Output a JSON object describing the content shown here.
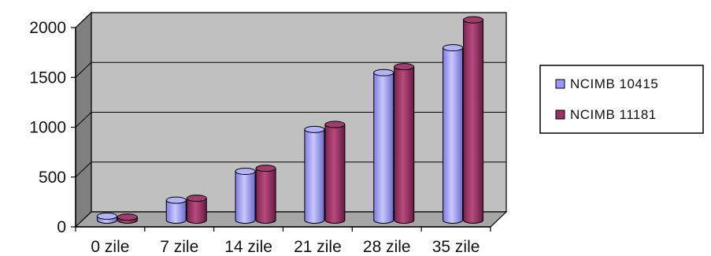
{
  "chart_data": {
    "type": "bar",
    "title": "",
    "xlabel": "",
    "ylabel": "",
    "categories": [
      "0 zile",
      "7 zile",
      "14 zile",
      "21 zile",
      "28 zile",
      "35 zile"
    ],
    "series": [
      {
        "name": "NCIMB 10415",
        "values": [
          40,
          200,
          490,
          910,
          1480,
          1730
        ],
        "color": "#9999ff"
      },
      {
        "name": "NCIMB 11181",
        "values": [
          30,
          220,
          520,
          960,
          1540,
          2010
        ],
        "color": "#993366"
      }
    ],
    "ylim": [
      0,
      2000
    ],
    "yticks": [
      0,
      500,
      1000,
      1500,
      2000
    ],
    "grid": true,
    "legend": "right",
    "style": "3d-cylinder",
    "wall_color": "#c0c0c0"
  }
}
